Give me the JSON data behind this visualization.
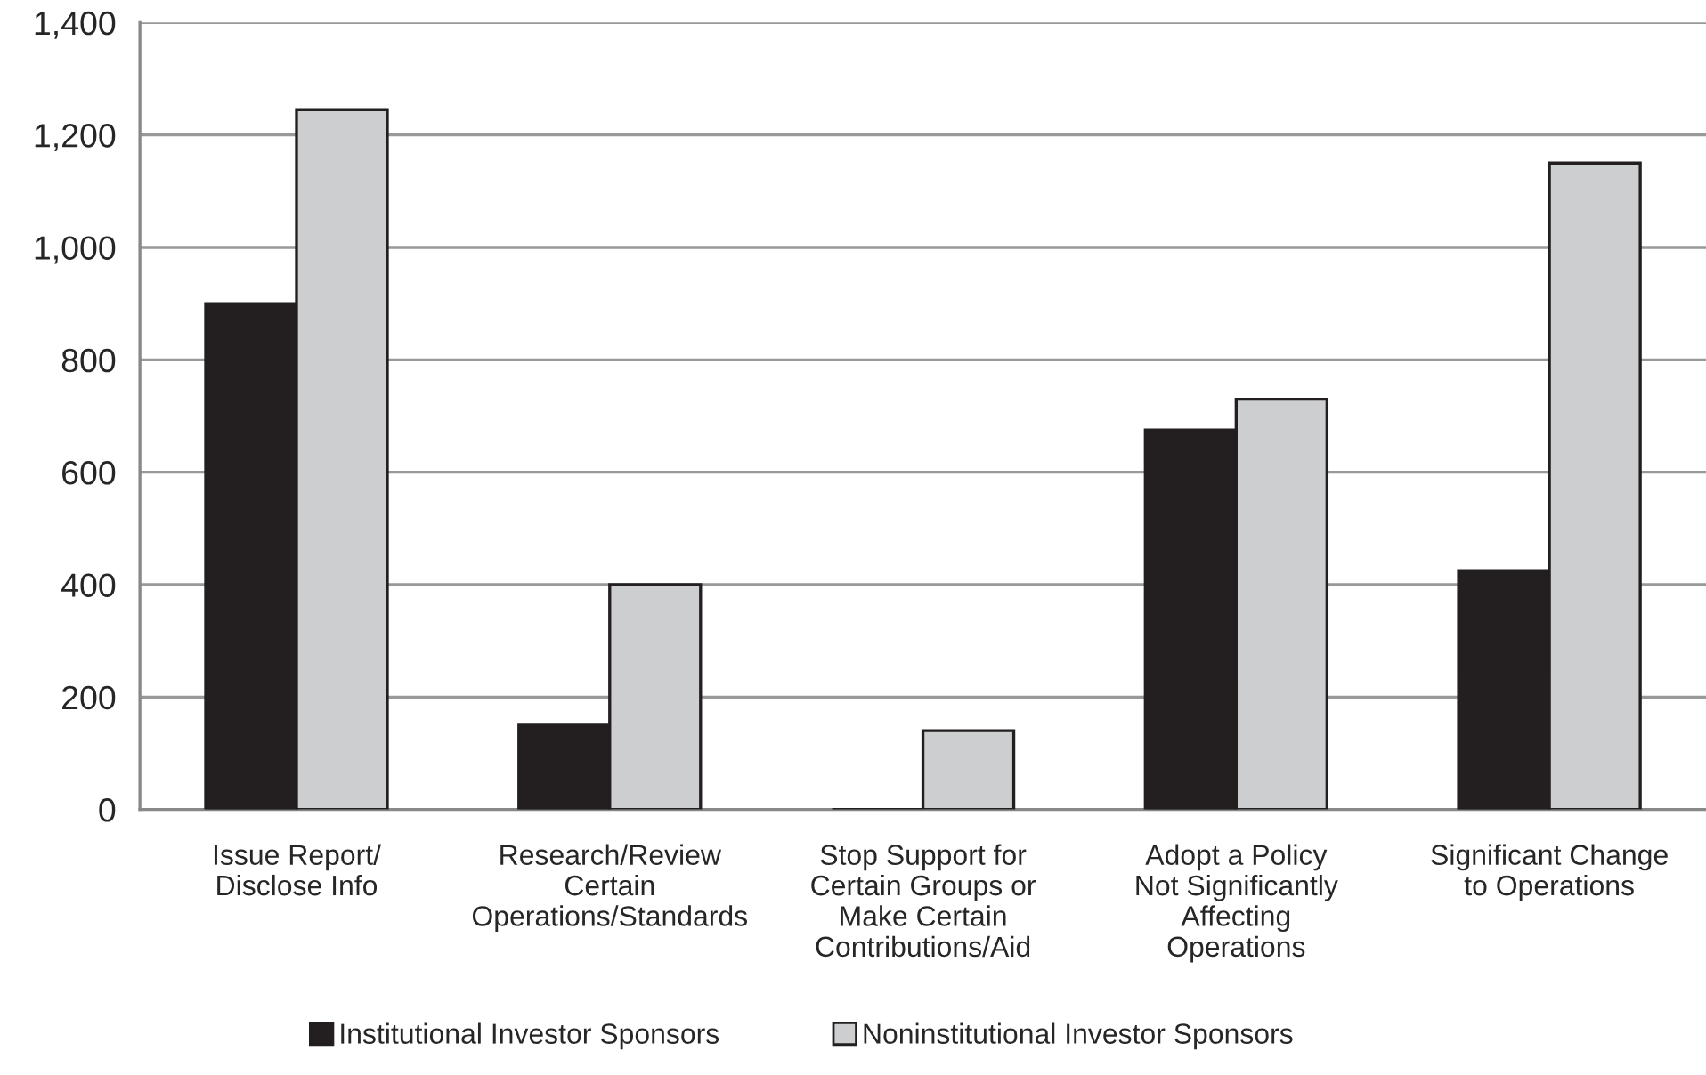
{
  "chart_data": {
    "type": "bar",
    "categories": [
      "Issue Report/\nDisclose Info",
      "Research/Review\nCertain\nOperations/Standards",
      "Stop Support for\nCertain Groups or\nMake Certain\nContributions/Aid",
      "Adopt a Policy\nNot Significantly\nAffecting\nOperations",
      "Significant Change\nto Operations"
    ],
    "series": [
      {
        "name": "Institutional Investor Sponsors",
        "color": "#231f20",
        "values": [
          900,
          150,
          0,
          675,
          425
        ]
      },
      {
        "name": "Noninstitutional Investor Sponsors",
        "color": "#cdced0",
        "values": [
          1245,
          400,
          140,
          730,
          1150
        ]
      }
    ],
    "ylim": [
      0,
      1400
    ],
    "yticks": [
      {
        "value": 0,
        "label": "0"
      },
      {
        "value": 200,
        "label": "200"
      },
      {
        "value": 400,
        "label": "400"
      },
      {
        "value": 600,
        "label": "600"
      },
      {
        "value": 800,
        "label": "800"
      },
      {
        "value": 1000,
        "label": "1,000"
      },
      {
        "value": 1200,
        "label": "1,200"
      },
      {
        "value": 1400,
        "label": "1,400"
      }
    ],
    "grid": "y",
    "legend": "bottom"
  }
}
